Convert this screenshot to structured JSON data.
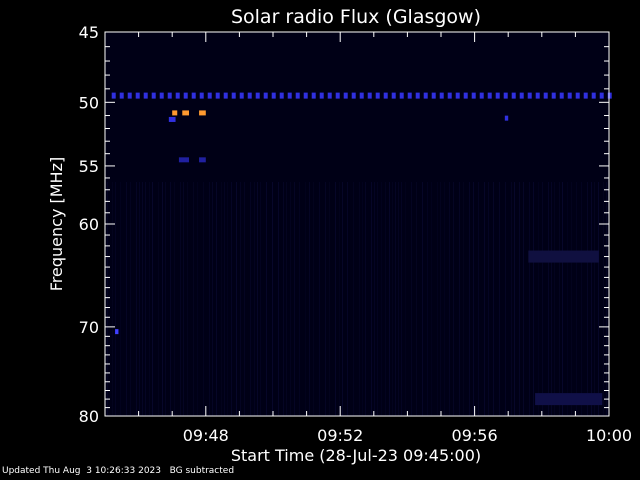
{
  "chart_data": {
    "type": "heatmap",
    "title": "Solar radio Flux (Glasgow)",
    "ylabel": "Frequency [MHz]",
    "xlabel": "Start Time (28-Jul-23 09:45:00)",
    "x_range_minutes": [
      0,
      15
    ],
    "y_range_mhz": [
      45,
      80
    ],
    "y_scale": "log",
    "y_ticks": [
      45,
      50,
      55,
      60,
      70,
      80
    ],
    "x_ticks": [
      {
        "minute": 3,
        "label": "09:48"
      },
      {
        "minute": 7,
        "label": "09:52"
      },
      {
        "minute": 11,
        "label": "09:56"
      },
      {
        "minute": 15,
        "label": "10:00"
      }
    ],
    "background_color": "#000016",
    "features": [
      {
        "name": "interference band",
        "freq_mhz": 49.5,
        "t_start_min": 0.2,
        "t_end_min": 15,
        "color": "#3030e0",
        "dashed": true
      },
      {
        "name": "burst",
        "freq_mhz": 50.8,
        "t_start_min": 2.0,
        "t_end_min": 2.15,
        "color": "#ff9a30"
      },
      {
        "name": "burst",
        "freq_mhz": 50.8,
        "t_start_min": 2.3,
        "t_end_min": 2.5,
        "color": "#ff9a30"
      },
      {
        "name": "burst",
        "freq_mhz": 50.8,
        "t_start_min": 2.8,
        "t_end_min": 3.0,
        "color": "#ff9a30"
      },
      {
        "name": "emission",
        "freq_mhz": 51.3,
        "t_start_min": 1.9,
        "t_end_min": 2.1,
        "color": "#3030e0"
      },
      {
        "name": "emission",
        "freq_mhz": 51.2,
        "t_start_min": 11.9,
        "t_end_min": 12.0,
        "color": "#3030e0"
      },
      {
        "name": "emission",
        "freq_mhz": 54.5,
        "t_start_min": 2.2,
        "t_end_min": 2.5,
        "color": "#2020a0"
      },
      {
        "name": "emission",
        "freq_mhz": 54.5,
        "t_start_min": 2.8,
        "t_end_min": 3.0,
        "color": "#2020a0"
      },
      {
        "name": "emission",
        "freq_mhz": 70.5,
        "t_start_min": 0.3,
        "t_end_min": 0.4,
        "color": "#4040ff"
      },
      {
        "name": "patch",
        "freq_mhz": 63.0,
        "t_start_min": 12.6,
        "t_end_min": 14.7,
        "color": "#101040"
      },
      {
        "name": "patch",
        "freq_mhz": 78.0,
        "t_start_min": 12.8,
        "t_end_min": 14.8,
        "color": "#101048"
      }
    ]
  },
  "footer": {
    "updated": "Updated Thu Aug  3 10:26:33 2023",
    "note": "BG subtracted"
  }
}
